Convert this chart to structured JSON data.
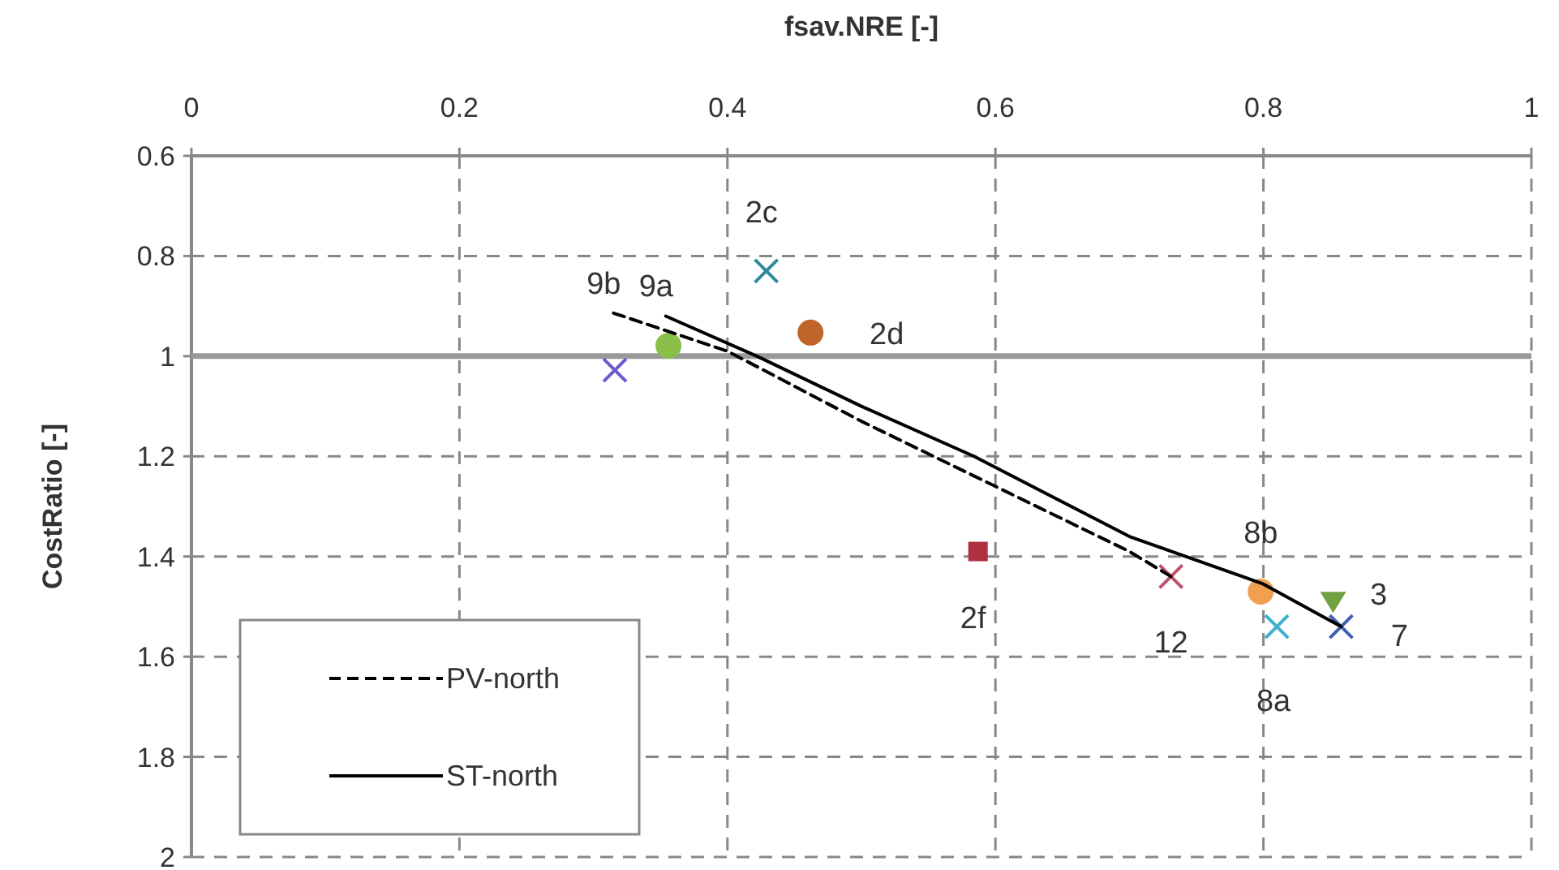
{
  "chart_data": {
    "type": "scatter",
    "xlabel": "fsav.NRE [-]",
    "ylabel": "CostRatio [-]",
    "xlim": [
      0,
      1
    ],
    "xticks": [
      0,
      0.2,
      0.4,
      0.6,
      0.8,
      1
    ],
    "ylim": [
      2,
      0.6
    ],
    "yticks": [
      0.6,
      0.8,
      1,
      1.2,
      1.4,
      1.6,
      1.8,
      2
    ],
    "grid": true,
    "legend": "bottom left",
    "ref_lines": [
      {
        "axis": "y",
        "value": 1,
        "color": "#999999"
      }
    ],
    "series": [
      {
        "type": "line",
        "name": "PV-north",
        "color": "#000000",
        "line_style": "dashed",
        "marker": "none",
        "x": [
          0.315,
          0.4,
          0.5,
          0.6,
          0.7,
          0.731
        ],
        "values": [
          0.914,
          0.99,
          1.13,
          1.26,
          1.39,
          1.44
        ]
      },
      {
        "type": "line",
        "name": "ST-north",
        "color": "#000000",
        "line_style": "solid",
        "marker": "none",
        "x": [
          0.354,
          0.422,
          0.5,
          0.584,
          0.7,
          0.8,
          0.858
        ],
        "values": [
          0.92,
          1,
          1.1,
          1.2,
          1.36,
          1.455,
          1.54
        ]
      },
      {
        "name": "2c",
        "color": "#2e8b9a",
        "marker": "cross",
        "x": [
          0.429
        ],
        "values": [
          0.83
        ]
      },
      {
        "name": "2d",
        "color": "#c0652a",
        "marker": "circle",
        "x": [
          0.462
        ],
        "values": [
          0.953
        ]
      },
      {
        "color": "#8bbf4a",
        "marker": "circle",
        "x": [
          0.356
        ],
        "values": [
          0.979
        ]
      },
      {
        "color": "#6a5acd",
        "marker": "cross",
        "x": [
          0.316
        ],
        "values": [
          1.028
        ]
      },
      {
        "name": "2f",
        "color": "#b03040",
        "marker": "square",
        "x": [
          0.587
        ],
        "values": [
          1.39
        ]
      },
      {
        "name": "12",
        "color": "#c0506a",
        "marker": "cross",
        "x": [
          0.731
        ],
        "values": [
          1.44
        ]
      },
      {
        "name": "8b",
        "color": "#f0a050",
        "marker": "circle",
        "x": [
          0.798
        ],
        "values": [
          1.47
        ]
      },
      {
        "name": "8a",
        "color": "#40b0d0",
        "marker": "cross",
        "x": [
          0.81
        ],
        "values": [
          1.54
        ]
      },
      {
        "name": "3",
        "color": "#70a040",
        "marker": "triangle",
        "x": [
          0.852
        ],
        "values": [
          1.49
        ]
      },
      {
        "name": "7",
        "color": "#4060b0",
        "marker": "cross",
        "x": [
          0.858
        ],
        "values": [
          1.54
        ]
      }
    ],
    "annotations": [
      {
        "text": "9b",
        "x": 0.315,
        "y": 0.914
      },
      {
        "text": "9a",
        "x": 0.354,
        "y": 0.92
      }
    ]
  }
}
